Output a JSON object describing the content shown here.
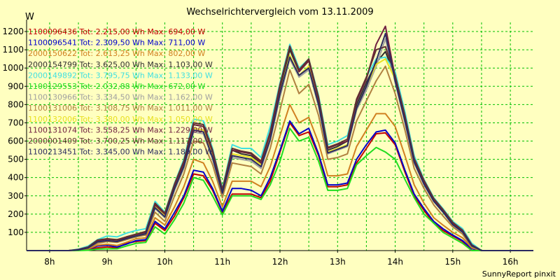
{
  "chart_data": {
    "type": "line",
    "title": "Wechselrichtervergleich vom 13.11.2009",
    "ylabel": "W",
    "xlabel": "",
    "footer": "SunnyReport pinxit",
    "ylim": [
      0,
      1250
    ],
    "xlim": [
      7.6,
      16.4
    ],
    "yticks": [
      100,
      200,
      300,
      400,
      500,
      600,
      700,
      800,
      900,
      1000,
      1100,
      1200
    ],
    "xticks": [
      {
        "value": 8,
        "label": "8h"
      },
      {
        "value": 9,
        "label": "9h"
      },
      {
        "value": 10,
        "label": "10h"
      },
      {
        "value": 11,
        "label": "11h"
      },
      {
        "value": 12,
        "label": "12h"
      },
      {
        "value": 13,
        "label": "13h"
      },
      {
        "value": 14,
        "label": "14h"
      },
      {
        "value": 15,
        "label": "15h"
      },
      {
        "value": 16,
        "label": "16h"
      }
    ],
    "grid": true,
    "legend_position": "top-left",
    "x": [
      7.6,
      8.17,
      8.33,
      8.5,
      8.67,
      8.83,
      9.0,
      9.17,
      9.33,
      9.5,
      9.67,
      9.83,
      10.0,
      10.17,
      10.33,
      10.5,
      10.67,
      10.83,
      11.0,
      11.17,
      11.33,
      11.5,
      11.67,
      11.83,
      12.0,
      12.17,
      12.33,
      12.5,
      12.67,
      12.83,
      13.0,
      13.17,
      13.33,
      13.5,
      13.67,
      13.83,
      14.0,
      14.17,
      14.33,
      14.5,
      14.67,
      14.83,
      15.0,
      15.17,
      15.33,
      15.5,
      15.67,
      15.83,
      16.0,
      16.17,
      16.4
    ],
    "series": [
      {
        "name": "1100096436",
        "tot": "Tot: 2.215,00 Wh",
        "max": "Max: 694,00 W",
        "color": "#c00000",
        "values": [
          0,
          0,
          0,
          2,
          6,
          15,
          20,
          15,
          40,
          50,
          55,
          150,
          110,
          190,
          290,
          420,
          410,
          330,
          210,
          310,
          310,
          310,
          290,
          380,
          540,
          700,
          630,
          650,
          520,
          350,
          350,
          360,
          480,
          560,
          640,
          645,
          580,
          430,
          300,
          220,
          150,
          110,
          80,
          50,
          0,
          0,
          0,
          0,
          0,
          0,
          0
        ]
      },
      {
        "name": "1100096541",
        "tot": "Tot: 2.309,50 Wh",
        "max": "Max: 711,00 W",
        "color": "#0000cc",
        "values": [
          0,
          0,
          0,
          3,
          8,
          25,
          30,
          20,
          35,
          55,
          60,
          160,
          120,
          210,
          300,
          440,
          430,
          340,
          215,
          340,
          340,
          330,
          300,
          400,
          550,
          710,
          640,
          670,
          530,
          360,
          360,
          370,
          500,
          580,
          650,
          660,
          590,
          440,
          310,
          230,
          160,
          120,
          85,
          55,
          10,
          0,
          0,
          0,
          0,
          0,
          0
        ]
      },
      {
        "name": "2000150622",
        "tot": "Tot: 2.613,25 Wh",
        "max": "Max: 802,00 W",
        "color": "#d08020",
        "values": [
          0,
          0,
          0,
          3,
          9,
          30,
          35,
          28,
          45,
          65,
          70,
          180,
          140,
          240,
          350,
          500,
          480,
          380,
          240,
          380,
          380,
          380,
          350,
          460,
          630,
          800,
          700,
          730,
          590,
          410,
          410,
          420,
          570,
          660,
          750,
          750,
          680,
          520,
          360,
          260,
          180,
          140,
          100,
          70,
          15,
          0,
          0,
          0,
          0,
          0,
          0
        ]
      },
      {
        "name": "2000154799",
        "tot": "Tot: 3.625,00 Wh",
        "max": "Max: 1.103,00 W",
        "color": "#303030",
        "values": [
          0,
          0,
          0,
          5,
          18,
          55,
          60,
          60,
          70,
          85,
          100,
          250,
          200,
          350,
          480,
          690,
          680,
          540,
          330,
          550,
          530,
          520,
          480,
          640,
          890,
          1100,
          980,
          1040,
          820,
          550,
          570,
          600,
          800,
          920,
          1030,
          1090,
          950,
          730,
          500,
          380,
          280,
          220,
          150,
          110,
          30,
          0,
          0,
          0,
          0,
          0,
          0
        ]
      },
      {
        "name": "2000149892",
        "tot": "Tot: 3.795,75 Wh",
        "max": "Max: 1.133,00 W",
        "color": "#40e0e0",
        "values": [
          0,
          0,
          0,
          8,
          25,
          60,
          80,
          75,
          95,
          110,
          120,
          270,
          210,
          370,
          500,
          720,
          710,
          560,
          340,
          580,
          560,
          560,
          510,
          680,
          920,
          1130,
          1000,
          1050,
          850,
          580,
          600,
          630,
          820,
          950,
          1050,
          1060,
          980,
          760,
          520,
          390,
          290,
          230,
          160,
          120,
          40,
          0,
          0,
          0,
          0,
          0,
          0
        ]
      },
      {
        "name": "1100129553",
        "tot": "Tot: 2.032,88 Wh",
        "max": "Max: 672,00 W",
        "color": "#20dd20",
        "values": [
          0,
          0,
          0,
          0,
          2,
          8,
          10,
          10,
          25,
          40,
          45,
          130,
          90,
          170,
          260,
          400,
          385,
          300,
          195,
          300,
          300,
          300,
          280,
          360,
          490,
          670,
          600,
          620,
          490,
          330,
          330,
          340,
          470,
          520,
          565,
          540,
          500,
          390,
          290,
          200,
          150,
          100,
          70,
          40,
          0,
          0,
          0,
          0,
          0,
          0,
          0
        ]
      },
      {
        "name": "1100130966",
        "tot": "Tot: 3.334,50 Wh",
        "max": "Max: 1.162,00 W",
        "color": "#a0a0a0",
        "values": [
          0,
          0,
          0,
          4,
          15,
          45,
          55,
          50,
          65,
          80,
          90,
          230,
          180,
          330,
          450,
          650,
          640,
          500,
          310,
          510,
          500,
          490,
          450,
          600,
          840,
          1050,
          950,
          990,
          790,
          530,
          550,
          570,
          770,
          880,
          1010,
          1160,
          920,
          700,
          480,
          360,
          270,
          210,
          140,
          100,
          25,
          0,
          0,
          0,
          0,
          0,
          0
        ]
      },
      {
        "name": "1100131006",
        "tot": "Tot: 3.108,75 Wh",
        "max": "Max: 1.011,00 W",
        "color": "#b08040",
        "values": [
          0,
          0,
          0,
          4,
          14,
          40,
          50,
          45,
          60,
          75,
          85,
          210,
          160,
          300,
          420,
          600,
          590,
          470,
          290,
          480,
          470,
          460,
          420,
          560,
          770,
          990,
          860,
          910,
          740,
          500,
          510,
          530,
          710,
          820,
          930,
          1010,
          860,
          660,
          450,
          340,
          250,
          190,
          130,
          90,
          20,
          0,
          0,
          0,
          0,
          0,
          0
        ]
      },
      {
        "name": "1100132006",
        "tot": "Tot: 3.380,00 Wh",
        "max": "Max: 1.050,00 W",
        "color": "#e8e020",
        "values": [
          0,
          0,
          0,
          5,
          16,
          50,
          58,
          52,
          68,
          82,
          95,
          240,
          190,
          340,
          460,
          670,
          660,
          520,
          320,
          530,
          520,
          510,
          470,
          620,
          860,
          1070,
          960,
          1010,
          800,
          540,
          560,
          580,
          780,
          900,
          1020,
          1050,
          940,
          720,
          490,
          370,
          275,
          215,
          145,
          105,
          28,
          0,
          0,
          0,
          0,
          0,
          0
        ]
      },
      {
        "name": "1100131074",
        "tot": "Tot: 3.558,25 Wh",
        "max": "Max: 1.229,00 W",
        "color": "#702040",
        "values": [
          0,
          0,
          0,
          5,
          18,
          55,
          62,
          58,
          72,
          88,
          100,
          250,
          200,
          360,
          480,
          690,
          680,
          540,
          330,
          550,
          540,
          530,
          480,
          640,
          900,
          1120,
          980,
          1040,
          830,
          560,
          580,
          600,
          820,
          940,
          1130,
          1229,
          950,
          730,
          500,
          380,
          280,
          220,
          150,
          110,
          30,
          0,
          0,
          0,
          0,
          0,
          0
        ]
      },
      {
        "name": "2000001409",
        "tot": "Tot: 3.700,25 Wh",
        "max": "Max: 1.117,00 W",
        "color": "#603030",
        "values": [
          0,
          0,
          0,
          6,
          20,
          58,
          65,
          60,
          75,
          90,
          105,
          260,
          205,
          365,
          490,
          700,
          690,
          550,
          335,
          560,
          545,
          535,
          490,
          650,
          910,
          1117,
          990,
          1050,
          840,
          565,
          585,
          610,
          830,
          950,
          1100,
          1117,
          960,
          740,
          505,
          385,
          285,
          225,
          155,
          112,
          32,
          0,
          0,
          0,
          0,
          0,
          0
        ]
      },
      {
        "name": "1100213451",
        "tot": "Tot: 3.345,00 Wh",
        "max": "Max: 1.189,00 W",
        "color": "#2a2a60",
        "values": [
          0,
          0,
          0,
          4,
          15,
          48,
          55,
          50,
          65,
          80,
          92,
          235,
          185,
          340,
          460,
          660,
          650,
          510,
          315,
          520,
          510,
          500,
          460,
          610,
          860,
          1060,
          960,
          1000,
          800,
          535,
          555,
          575,
          780,
          900,
          1040,
          1189,
          930,
          710,
          485,
          365,
          270,
          212,
          142,
          102,
          26,
          0,
          0,
          0,
          0,
          0,
          0
        ]
      }
    ]
  }
}
